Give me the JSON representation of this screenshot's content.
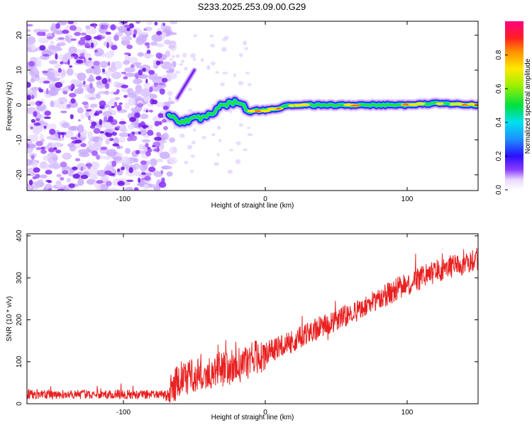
{
  "title": "S233.2025.253.09.00.G29",
  "chart_data": [
    {
      "type": "heatmap",
      "xlabel": "Height of straight line (km)",
      "ylabel": "Frequency (Hz)",
      "xlim": [
        -168,
        150
      ],
      "ylim": [
        -24.5,
        24
      ],
      "xticks": [
        -100,
        0,
        100
      ],
      "yticks": [
        -20,
        -10,
        0,
        10,
        20
      ],
      "colorbar": {
        "label": "Normalized spectral amplitude",
        "range": [
          0,
          1
        ],
        "ticks": [
          0.0,
          0.2,
          0.4,
          0.6,
          0.8
        ],
        "tick_labels": [
          "0.0",
          "0.2",
          "0.4",
          "0.6",
          "0.8"
        ]
      },
      "noise_region_km": [
        -168,
        -70
      ],
      "signal_track": [
        {
          "x": -68,
          "y": -2.5
        },
        {
          "x": -60,
          "y": -5
        },
        {
          "x": -50,
          "y": -4
        },
        {
          "x": -40,
          "y": -3
        },
        {
          "x": -30,
          "y": 0
        },
        {
          "x": -20,
          "y": 1
        },
        {
          "x": -12,
          "y": -1.5
        },
        {
          "x": 0,
          "y": -1.5
        },
        {
          "x": 20,
          "y": 0
        },
        {
          "x": 50,
          "y": 0
        },
        {
          "x": 80,
          "y": 0
        },
        {
          "x": 100,
          "y": 0
        },
        {
          "x": 120,
          "y": 0.5
        },
        {
          "x": 150,
          "y": 0
        }
      ],
      "secondary_branch": [
        {
          "x": -62,
          "y": 2
        },
        {
          "x": -56,
          "y": 6
        },
        {
          "x": -50,
          "y": 10
        }
      ]
    },
    {
      "type": "line",
      "xlabel": "Height of straight line (km)",
      "ylabel": "SNR (10 * v/v)",
      "xlim": [
        -168,
        150
      ],
      "ylim": [
        0,
        405
      ],
      "xticks": [
        -100,
        0,
        100
      ],
      "yticks": [
        0,
        100,
        200,
        300,
        400
      ],
      "series": [
        {
          "name": "SNR",
          "color": "#e82020",
          "trend": [
            {
              "x": -168,
              "y": 22
            },
            {
              "x": -70,
              "y": 22
            },
            {
              "x": -60,
              "y": 60
            },
            {
              "x": -40,
              "y": 75
            },
            {
              "x": -20,
              "y": 90
            },
            {
              "x": 0,
              "y": 120
            },
            {
              "x": 20,
              "y": 150
            },
            {
              "x": 40,
              "y": 185
            },
            {
              "x": 60,
              "y": 215
            },
            {
              "x": 80,
              "y": 250
            },
            {
              "x": 100,
              "y": 285
            },
            {
              "x": 120,
              "y": 315
            },
            {
              "x": 150,
              "y": 345
            }
          ]
        }
      ]
    }
  ]
}
